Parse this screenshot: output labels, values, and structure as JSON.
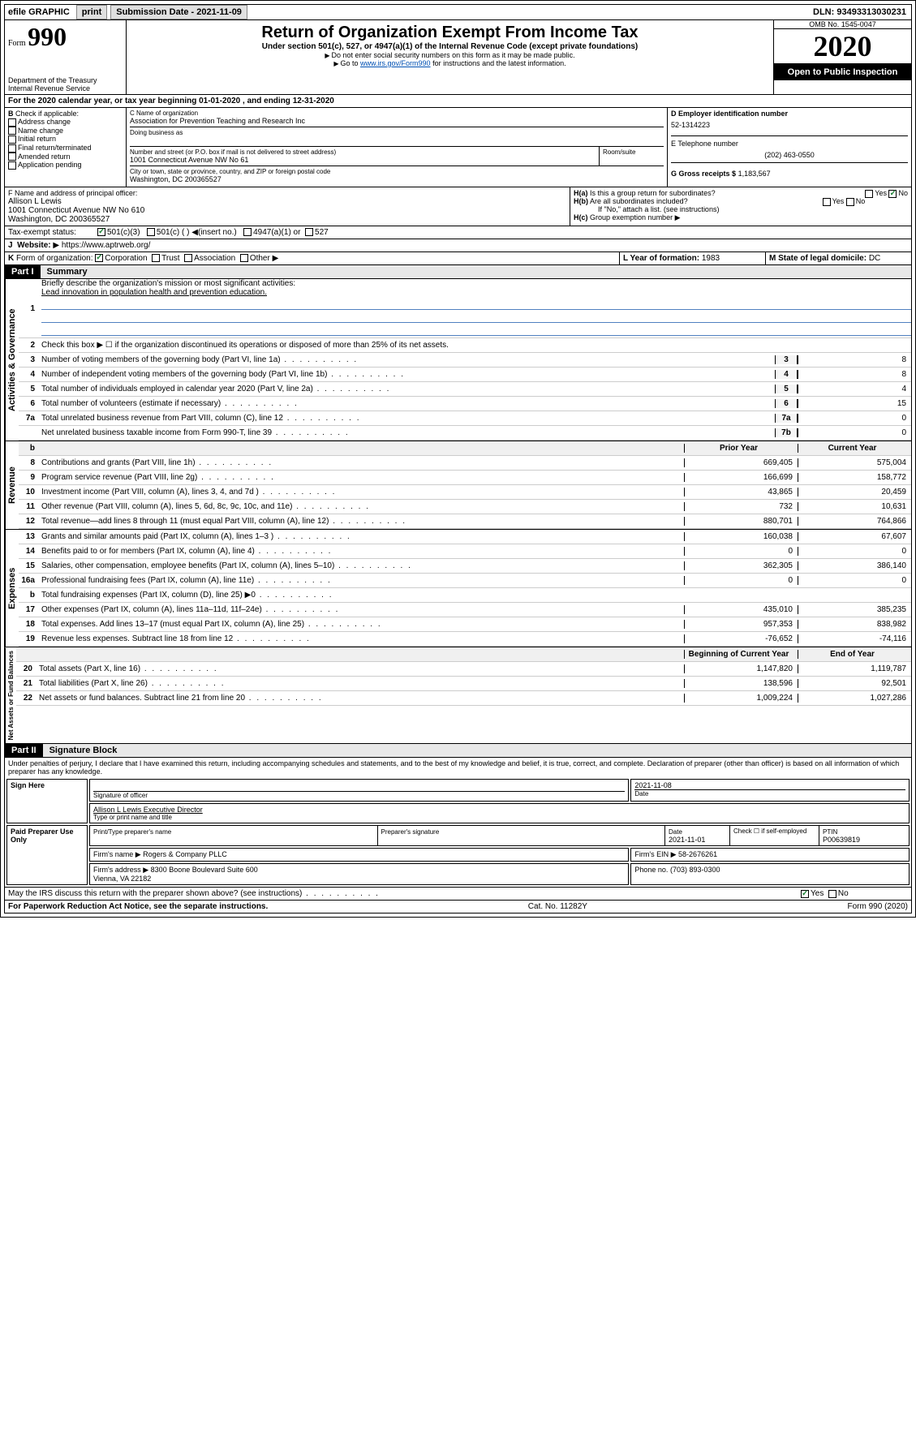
{
  "topbar": {
    "efile": "efile GRAPHIC",
    "print": "print",
    "submission_label": "Submission Date - 2021-11-09",
    "dln": "DLN: 93493313030231"
  },
  "header": {
    "form_label": "Form",
    "form_number": "990",
    "dept": "Department of the Treasury\nInternal Revenue Service",
    "title": "Return of Organization Exempt From Income Tax",
    "subtitle": "Under section 501(c), 527, or 4947(a)(1) of the Internal Revenue Code (except private foundations)",
    "note1": "Do not enter social security numbers on this form as it may be made public.",
    "note2_pre": "Go to ",
    "note2_link": "www.irs.gov/Form990",
    "note2_post": " for instructions and the latest information.",
    "omb": "OMB No. 1545-0047",
    "year": "2020",
    "open": "Open to Public Inspection"
  },
  "period": "For the 2020 calendar year, or tax year beginning 01-01-2020  , and ending 12-31-2020",
  "boxB": {
    "label": "Check if applicable:",
    "opts": [
      "Address change",
      "Name change",
      "Initial return",
      "Final return/terminated",
      "Amended return",
      "Application pending"
    ]
  },
  "boxC": {
    "name_label": "C Name of organization",
    "name": "Association for Prevention Teaching and Research Inc",
    "dba_label": "Doing business as",
    "addr_label": "Number and street (or P.O. box if mail is not delivered to street address)",
    "room_label": "Room/suite",
    "addr": "1001 Connecticut Avenue NW No 61",
    "city_label": "City or town, state or province, country, and ZIP or foreign postal code",
    "city": "Washington, DC  200365527"
  },
  "boxD": {
    "label": "D Employer identification number",
    "ein": "52-1314223"
  },
  "boxE": {
    "label": "E Telephone number",
    "phone": "(202) 463-0550"
  },
  "boxG": {
    "label": "G Gross receipts $",
    "val": "1,183,567"
  },
  "boxF": {
    "label": "F  Name and address of principal officer:",
    "name": "Allison L Lewis",
    "addr": "1001 Connecticut Avenue NW No 610\nWashington, DC  200365527"
  },
  "boxH": {
    "a": "Is this a group return for subordinates?",
    "b": "Are all subordinates included?",
    "b_note": "If \"No,\" attach a list. (see instructions)",
    "c": "Group exemption number"
  },
  "taxexempt": {
    "label": "Tax-exempt status:",
    "o501c3": "501(c)(3)",
    "o501c": "501(c) (  )",
    "insert": "(insert no.)",
    "o4947": "4947(a)(1) or",
    "o527": "527"
  },
  "boxJ": {
    "label": "Website:",
    "url": "https://www.aptrweb.org/"
  },
  "boxK": {
    "label": "Form of organization:",
    "corp": "Corporation",
    "trust": "Trust",
    "assoc": "Association",
    "other": "Other"
  },
  "boxL": {
    "label": "L Year of formation:",
    "val": "1983"
  },
  "boxM": {
    "label": "M State of legal domicile:",
    "val": "DC"
  },
  "parts": {
    "p1": "Part I",
    "p1_title": "Summary",
    "p2": "Part II",
    "p2_title": "Signature Block"
  },
  "summary": {
    "sections": {
      "gov": "Activities & Governance",
      "rev": "Revenue",
      "exp": "Expenses",
      "net": "Net Assets or Fund Balances"
    },
    "l1_label": "Briefly describe the organization's mission or most significant activities:",
    "l1_text": "Lead innovation in population health and prevention education.",
    "l2_label": "Check this box ▶ ☐ if the organization discontinued its operations or disposed of more than 25% of its net assets.",
    "lines_gov": [
      {
        "n": "3",
        "d": "Number of voting members of the governing body (Part VI, line 1a)",
        "b": "3",
        "v": "8"
      },
      {
        "n": "4",
        "d": "Number of independent voting members of the governing body (Part VI, line 1b)",
        "b": "4",
        "v": "8"
      },
      {
        "n": "5",
        "d": "Total number of individuals employed in calendar year 2020 (Part V, line 2a)",
        "b": "5",
        "v": "4"
      },
      {
        "n": "6",
        "d": "Total number of volunteers (estimate if necessary)",
        "b": "6",
        "v": "15"
      },
      {
        "n": "7a",
        "d": "Total unrelated business revenue from Part VIII, column (C), line 12",
        "b": "7a",
        "v": "0"
      },
      {
        "n": "",
        "d": "Net unrelated business taxable income from Form 990-T, line 39",
        "b": "7b",
        "v": "0"
      }
    ],
    "col_prior": "Prior Year",
    "col_curr": "Current Year",
    "col_begin": "Beginning of Current Year",
    "col_end": "End of Year",
    "lines_rev": [
      {
        "n": "8",
        "d": "Contributions and grants (Part VIII, line 1h)",
        "p": "669,405",
        "c": "575,004"
      },
      {
        "n": "9",
        "d": "Program service revenue (Part VIII, line 2g)",
        "p": "166,699",
        "c": "158,772"
      },
      {
        "n": "10",
        "d": "Investment income (Part VIII, column (A), lines 3, 4, and 7d )",
        "p": "43,865",
        "c": "20,459"
      },
      {
        "n": "11",
        "d": "Other revenue (Part VIII, column (A), lines 5, 6d, 8c, 9c, 10c, and 11e)",
        "p": "732",
        "c": "10,631"
      },
      {
        "n": "12",
        "d": "Total revenue—add lines 8 through 11 (must equal Part VIII, column (A), line 12)",
        "p": "880,701",
        "c": "764,866"
      }
    ],
    "lines_exp": [
      {
        "n": "13",
        "d": "Grants and similar amounts paid (Part IX, column (A), lines 1–3 )",
        "p": "160,038",
        "c": "67,607"
      },
      {
        "n": "14",
        "d": "Benefits paid to or for members (Part IX, column (A), line 4)",
        "p": "0",
        "c": "0"
      },
      {
        "n": "15",
        "d": "Salaries, other compensation, employee benefits (Part IX, column (A), lines 5–10)",
        "p": "362,305",
        "c": "386,140"
      },
      {
        "n": "16a",
        "d": "Professional fundraising fees (Part IX, column (A), line 11e)",
        "p": "0",
        "c": "0"
      },
      {
        "n": "b",
        "d": "Total fundraising expenses (Part IX, column (D), line 25) ▶0",
        "p": "",
        "c": "",
        "shade": true
      },
      {
        "n": "17",
        "d": "Other expenses (Part IX, column (A), lines 11a–11d, 11f–24e)",
        "p": "435,010",
        "c": "385,235"
      },
      {
        "n": "18",
        "d": "Total expenses. Add lines 13–17 (must equal Part IX, column (A), line 25)",
        "p": "957,353",
        "c": "838,982"
      },
      {
        "n": "19",
        "d": "Revenue less expenses. Subtract line 18 from line 12",
        "p": "-76,652",
        "c": "-74,116"
      }
    ],
    "lines_net": [
      {
        "n": "20",
        "d": "Total assets (Part X, line 16)",
        "p": "1,147,820",
        "c": "1,119,787"
      },
      {
        "n": "21",
        "d": "Total liabilities (Part X, line 26)",
        "p": "138,596",
        "c": "92,501"
      },
      {
        "n": "22",
        "d": "Net assets or fund balances. Subtract line 21 from line 20",
        "p": "1,009,224",
        "c": "1,027,286"
      }
    ]
  },
  "sig_block": {
    "perjury": "Under penalties of perjury, I declare that I have examined this return, including accompanying schedules and statements, and to the best of my knowledge and belief, it is true, correct, and complete. Declaration of preparer (other than officer) is based on all information of which preparer has any knowledge.",
    "sign_here": "Sign Here",
    "sig_officer": "Signature of officer",
    "date": "2021-11-08",
    "date_label": "Date",
    "name_title": "Allison L Lewis  Executive Director",
    "name_title_label": "Type or print name and title",
    "paid": "Paid Preparer Use Only",
    "prep_name_label": "Print/Type preparer's name",
    "prep_sig_label": "Preparer's signature",
    "prep_date_label": "Date",
    "prep_date": "2021-11-01",
    "check_self": "Check ☐ if self-employed",
    "ptin_label": "PTIN",
    "ptin": "P00639819",
    "firm_name_label": "Firm's name",
    "firm_name": "Rogers & Company PLLC",
    "firm_ein_label": "Firm's EIN",
    "firm_ein": "58-2676261",
    "firm_addr_label": "Firm's address",
    "firm_addr": "8300 Boone Boulevard Suite 600\nVienna, VA  22182",
    "phone_label": "Phone no.",
    "phone": "(703) 893-0300",
    "discuss": "May the IRS discuss this return with the preparer shown above? (see instructions)",
    "yes": "Yes",
    "no": "No"
  },
  "footer": {
    "paperwork": "For Paperwork Reduction Act Notice, see the separate instructions.",
    "cat": "Cat. No. 11282Y",
    "form": "Form 990 (2020)"
  }
}
